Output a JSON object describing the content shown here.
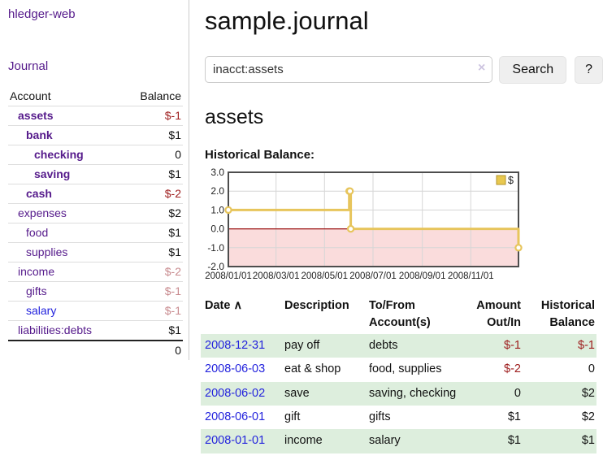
{
  "app": {
    "brand": "hledger-web",
    "nav_journal": "Journal"
  },
  "colors": {
    "link_purple": "#551a8b",
    "link_blue": "#2323dd",
    "neg_strong": "#9d1c1c",
    "neg_muted": "#c88a8e",
    "stripe_green": "#ddeedd",
    "chart_line": "#e7c55c",
    "chart_marker_fill": "#ffffff",
    "chart_area_negative": "#fadcdc",
    "chart_zero_line": "#9b1010",
    "chart_grid": "#d6d6d6",
    "chart_border": "#4d4d4d",
    "legend_fill": "#e8c84f",
    "legend_border": "#b3942c"
  },
  "sidebar": {
    "header": {
      "account": "Account",
      "balance": "Balance"
    },
    "accounts": [
      {
        "name": "assets",
        "balance": "$-1"
      },
      {
        "name": "bank",
        "balance": "$1"
      },
      {
        "name": "checking",
        "balance": "0"
      },
      {
        "name": "saving",
        "balance": "$1"
      },
      {
        "name": "cash",
        "balance": "$-2"
      },
      {
        "name": "expenses",
        "balance": "$2"
      },
      {
        "name": "food",
        "balance": "$1"
      },
      {
        "name": "supplies",
        "balance": "$1"
      },
      {
        "name": "income",
        "balance": "$-2"
      },
      {
        "name": "gifts",
        "balance": "$-1"
      },
      {
        "name": "salary",
        "balance": "$-1"
      },
      {
        "name": "liabilities:debts",
        "balance": "$1"
      }
    ],
    "total": "0"
  },
  "main": {
    "title": "sample.journal",
    "search": {
      "value": "inacct:assets",
      "clear_icon": "×",
      "button_label": "Search",
      "help_label": "?"
    },
    "account_heading": "assets",
    "chart_label": "Historical Balance:"
  },
  "chart_data": {
    "type": "line",
    "step": true,
    "title": "Historical Balance:",
    "series": [
      {
        "name": "$",
        "points": [
          [
            "2008-01-01",
            1
          ],
          [
            "2008-06-01",
            2
          ],
          [
            "2008-06-02",
            2
          ],
          [
            "2008-06-03",
            0
          ],
          [
            "2008-12-31",
            -1
          ]
        ]
      }
    ],
    "xlim": [
      "2008-01-01",
      "2008-12-31"
    ],
    "ylim": [
      -2,
      3
    ],
    "yticks": [
      3.0,
      2.0,
      1.0,
      0.0,
      -1.0,
      -2.0
    ],
    "xticks": [
      {
        "date": "2008-01-01",
        "label": "2008/01/01"
      },
      {
        "date": "2008-03-01",
        "label": "2008/03/01"
      },
      {
        "date": "2008-05-01",
        "label": "2008/05/01"
      },
      {
        "date": "2008-07-01",
        "label": "2008/07/01"
      },
      {
        "date": "2008-09-01",
        "label": "2008/09/01"
      },
      {
        "date": "2008-11-01",
        "label": "2008/11/01"
      }
    ],
    "legend": {
      "label": "$",
      "position": "top-right"
    },
    "grid": true,
    "negative_region_shaded": true,
    "zero_line": true
  },
  "register": {
    "headers": {
      "date": "Date",
      "sort_icon": "∧",
      "description": "Description",
      "account_l1": "To/From",
      "account_l2": "Account(s)",
      "amount_l1": "Amount",
      "amount_l2": "Out/In",
      "balance_l1": "Historical",
      "balance_l2": "Balance"
    },
    "rows": [
      {
        "date": "2008-12-31",
        "description": "pay off",
        "accounts": "debts",
        "amount": "$-1",
        "balance": "$-1"
      },
      {
        "date": "2008-06-03",
        "description": "eat & shop",
        "accounts": "food, supplies",
        "amount": "$-2",
        "balance": "0"
      },
      {
        "date": "2008-06-02",
        "description": "save",
        "accounts": "saving, checking",
        "amount": "0",
        "balance": "$2"
      },
      {
        "date": "2008-06-01",
        "description": "gift",
        "accounts": "gifts",
        "amount": "$1",
        "balance": "$2"
      },
      {
        "date": "2008-01-01",
        "description": "income",
        "accounts": "salary",
        "amount": "$1",
        "balance": "$1"
      }
    ]
  }
}
